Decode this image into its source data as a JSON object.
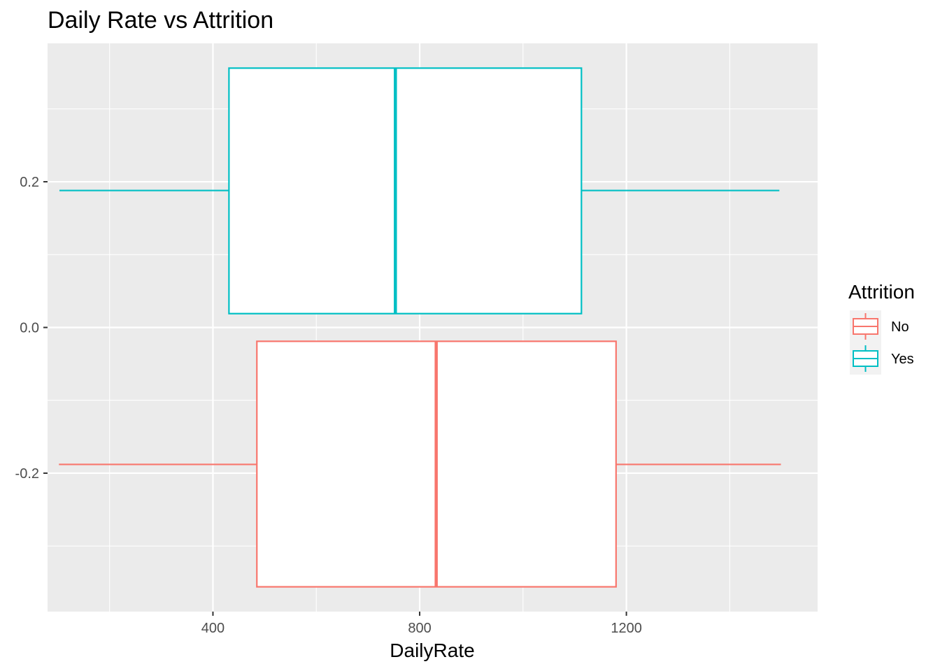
{
  "chart_data": {
    "type": "boxplot",
    "title": "Daily Rate vs Attrition",
    "xlabel": "DailyRate",
    "ylabel": "",
    "xlim": [
      80,
      1570
    ],
    "ylim": [
      -0.39,
      0.39
    ],
    "x_ticks": [
      {
        "value": 400,
        "label": "400"
      },
      {
        "value": 800,
        "label": "800"
      },
      {
        "value": 1200,
        "label": "1200"
      }
    ],
    "x_minor": [
      200,
      600,
      1000,
      1400
    ],
    "y_ticks": [
      {
        "value": 0.2,
        "label": "0.2"
      },
      {
        "value": 0.0,
        "label": "0.0"
      },
      {
        "value": -0.2,
        "label": "-0.2"
      }
    ],
    "y_minor": [
      0.3,
      0.1,
      -0.1,
      -0.3
    ],
    "grid": true,
    "legend": {
      "title": "Attrition",
      "position": "right",
      "entries": [
        {
          "label": "No",
          "color": "#F8766D"
        },
        {
          "label": "Yes",
          "color": "#00BFC4"
        }
      ]
    },
    "series": [
      {
        "name": "No",
        "color": "#F8766D",
        "min": 102,
        "q1": 485,
        "median": 832,
        "q3": 1180,
        "max": 1499,
        "box_y": [
          -0.356,
          -0.019
        ],
        "whisker_y": -0.188
      },
      {
        "name": "Yes",
        "color": "#00BFC4",
        "min": 103,
        "q1": 431,
        "median": 753,
        "q3": 1113,
        "max": 1496,
        "box_y": [
          0.019,
          0.356
        ],
        "whisker_y": 0.188
      }
    ]
  }
}
